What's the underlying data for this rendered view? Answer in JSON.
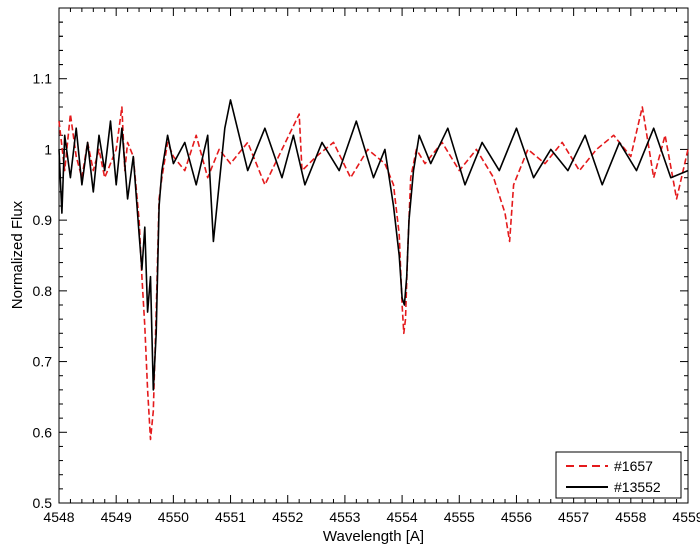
{
  "chart_data": {
    "type": "line",
    "title": "",
    "xlabel": "Wavelength [A]",
    "ylabel": "Normalized Flux",
    "xlim": [
      4548,
      4559
    ],
    "ylim": [
      0.5,
      1.2
    ],
    "x_ticks": [
      "4548",
      "4549",
      "4550",
      "4551",
      "4552",
      "4553",
      "4554",
      "4555",
      "4556",
      "4557",
      "4558",
      "4559"
    ],
    "y_ticks": [
      "0.5",
      "0.6",
      "0.7",
      "0.8",
      "0.9",
      "1",
      "1.1"
    ],
    "grid": false,
    "legend_position": "bottom-right",
    "series": [
      {
        "name": "#1657",
        "color": "#e41a1c",
        "style": "dashed",
        "x": [
          4548.0,
          4548.1,
          4548.2,
          4548.3,
          4548.4,
          4548.5,
          4548.6,
          4548.7,
          4548.8,
          4548.9,
          4549.0,
          4549.1,
          4549.15,
          4549.2,
          4549.3,
          4549.4,
          4549.45,
          4549.5,
          4549.55,
          4549.6,
          4549.65,
          4549.7,
          4549.75,
          4549.8,
          4549.9,
          4550.0,
          4550.2,
          4550.4,
          4550.6,
          4550.8,
          4551.0,
          4551.3,
          4551.6,
          4551.9,
          4552.2,
          4552.25,
          4552.5,
          4552.8,
          4553.1,
          4553.4,
          4553.7,
          4553.85,
          4553.95,
          4554.0,
          4554.03,
          4554.06,
          4554.1,
          4554.15,
          4554.25,
          4554.4,
          4554.7,
          4555.0,
          4555.3,
          4555.6,
          4555.8,
          4555.88,
          4555.95,
          4556.2,
          4556.5,
          4556.8,
          4557.1,
          4557.4,
          4557.7,
          4558.0,
          4558.2,
          4558.4,
          4558.6,
          4558.8,
          4559.0
        ],
        "y": [
          1.04,
          0.97,
          1.05,
          0.99,
          0.96,
          1.01,
          0.97,
          1.0,
          0.96,
          0.98,
          1.0,
          1.06,
          0.97,
          1.01,
          0.99,
          0.9,
          0.82,
          0.75,
          0.66,
          0.59,
          0.63,
          0.77,
          0.93,
          0.96,
          1.01,
          0.99,
          0.97,
          1.02,
          0.96,
          1.0,
          0.98,
          1.01,
          0.95,
          1.0,
          1.05,
          0.97,
          0.99,
          1.01,
          0.96,
          1.0,
          0.98,
          0.95,
          0.88,
          0.78,
          0.74,
          0.76,
          0.86,
          0.96,
          1.0,
          0.98,
          1.01,
          0.97,
          1.0,
          0.96,
          0.91,
          0.87,
          0.95,
          1.0,
          0.98,
          1.01,
          0.97,
          1.0,
          1.02,
          0.99,
          1.06,
          0.96,
          1.02,
          0.93,
          1.0
        ]
      },
      {
        "name": "#13552",
        "color": "#000000",
        "style": "solid",
        "x": [
          4548.0,
          4548.05,
          4548.1,
          4548.2,
          4548.3,
          4548.4,
          4548.5,
          4548.6,
          4548.7,
          4548.8,
          4548.9,
          4549.0,
          4549.1,
          4549.2,
          4549.3,
          4549.4,
          4549.45,
          4549.5,
          4549.55,
          4549.6,
          4549.65,
          4549.7,
          4549.75,
          4549.8,
          4549.9,
          4550.0,
          4550.2,
          4550.4,
          4550.6,
          4550.7,
          4550.9,
          4551.0,
          4551.3,
          4551.6,
          4551.9,
          4552.1,
          4552.3,
          4552.6,
          4552.9,
          4553.2,
          4553.5,
          4553.7,
          4553.85,
          4553.95,
          4554.0,
          4554.04,
          4554.08,
          4554.12,
          4554.2,
          4554.3,
          4554.5,
          4554.8,
          4555.1,
          4555.4,
          4555.7,
          4556.0,
          4556.3,
          4556.6,
          4556.9,
          4557.2,
          4557.5,
          4557.8,
          4558.1,
          4558.4,
          4558.7,
          4559.0
        ],
        "y": [
          1.0,
          0.91,
          1.02,
          0.96,
          1.03,
          0.95,
          1.01,
          0.94,
          1.02,
          0.97,
          1.04,
          0.95,
          1.03,
          0.93,
          0.99,
          0.88,
          0.83,
          0.89,
          0.77,
          0.82,
          0.66,
          0.74,
          0.92,
          0.97,
          1.02,
          0.98,
          1.01,
          0.95,
          1.02,
          0.87,
          1.03,
          1.07,
          0.97,
          1.03,
          0.96,
          1.02,
          0.95,
          1.01,
          0.97,
          1.04,
          0.96,
          1.0,
          0.92,
          0.85,
          0.79,
          0.78,
          0.82,
          0.9,
          0.97,
          1.02,
          0.98,
          1.03,
          0.95,
          1.01,
          0.97,
          1.03,
          0.96,
          1.0,
          0.97,
          1.02,
          0.95,
          1.01,
          0.97,
          1.03,
          0.96,
          0.97
        ]
      }
    ]
  }
}
